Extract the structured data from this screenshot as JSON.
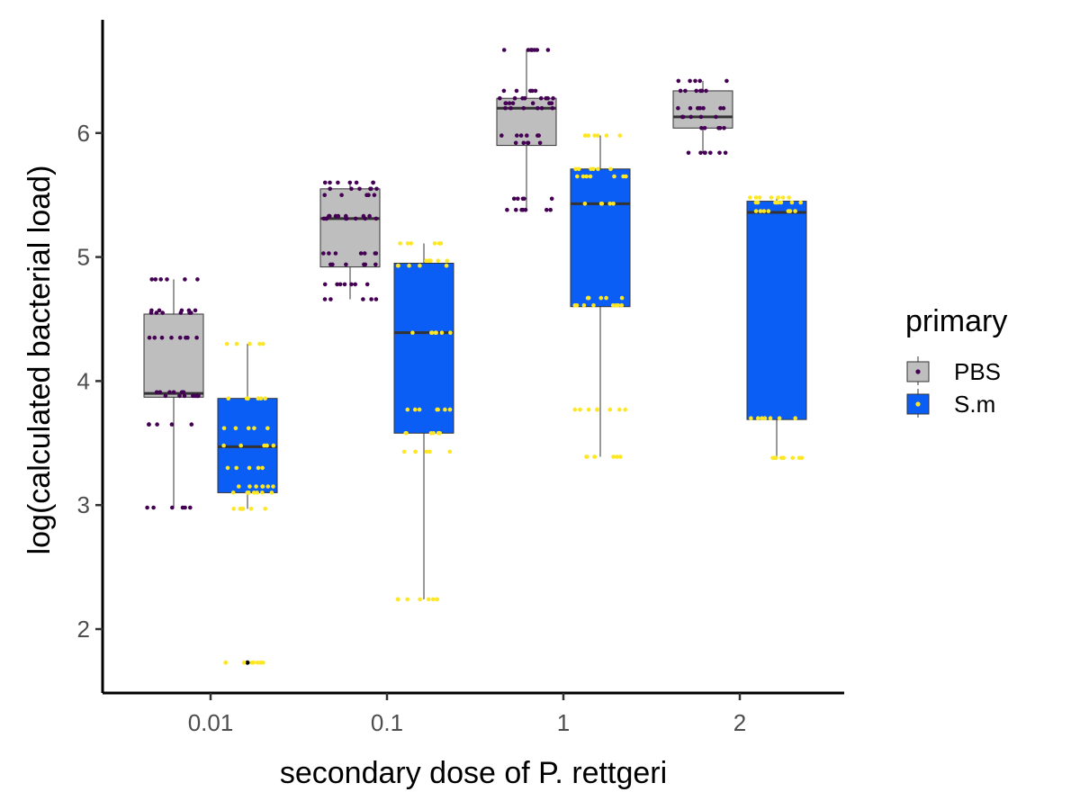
{
  "chart_data": {
    "type": "box",
    "xlabel": "secondary dose of P. rettgeri",
    "ylabel": "log(calculated bacterial load)",
    "categories": [
      "0.01",
      "0.1",
      "1",
      "2"
    ],
    "yticks": [
      2,
      3,
      4,
      5,
      6
    ],
    "ylim": [
      1.5,
      6.9
    ],
    "legend": {
      "title": "primary",
      "position": "right"
    },
    "series": [
      {
        "name": "PBS",
        "box_color": "#bebebe",
        "point_color": "#440154",
        "boxes": [
          {
            "min": 2.98,
            "q1": 3.87,
            "median": 3.9,
            "q3": 4.54,
            "max": 4.82,
            "points": [
              4.82,
              4.57,
              4.55,
              4.35,
              3.91,
              3.88,
              3.65,
              2.98
            ]
          },
          {
            "min": 4.66,
            "q1": 4.92,
            "median": 5.31,
            "q3": 5.55,
            "max": 5.6,
            "points": [
              5.6,
              5.55,
              5.5,
              5.33,
              5.31,
              5.03,
              4.94,
              4.78,
              4.66
            ]
          },
          {
            "min": 5.38,
            "q1": 5.9,
            "median": 6.2,
            "q3": 6.28,
            "max": 6.67,
            "points": [
              6.67,
              6.34,
              6.28,
              6.24,
              6.2,
              5.98,
              5.92,
              5.47,
              5.38
            ]
          },
          {
            "min": 5.84,
            "q1": 6.04,
            "median": 6.13,
            "q3": 6.34,
            "max": 6.42,
            "points": [
              6.42,
              6.34,
              6.2,
              6.13,
              6.04,
              5.84
            ]
          }
        ]
      },
      {
        "name": "S.m",
        "box_color": "#0a5ef5",
        "point_color": "#fde725",
        "boxes": [
          {
            "min": 2.97,
            "q1": 3.1,
            "median": 3.47,
            "q3": 3.86,
            "max": 4.3,
            "outliers": [
              1.73
            ],
            "points": [
              4.3,
              3.86,
              3.62,
              3.48,
              3.3,
              3.15,
              3.1,
              2.97,
              1.73
            ]
          },
          {
            "min": 2.24,
            "q1": 3.58,
            "median": 4.39,
            "q3": 4.95,
            "max": 5.11,
            "points": [
              5.11,
              4.97,
              4.93,
              4.39,
              3.77,
              3.58,
              3.43,
              2.24
            ]
          },
          {
            "min": 3.39,
            "q1": 4.6,
            "median": 5.43,
            "q3": 5.71,
            "max": 5.98,
            "points": [
              5.98,
              5.71,
              5.65,
              5.43,
              4.67,
              4.61,
              3.77,
              3.39
            ]
          },
          {
            "min": 3.38,
            "q1": 3.69,
            "median": 5.36,
            "q3": 5.45,
            "max": 5.48,
            "points": [
              5.48,
              5.44,
              5.37,
              3.7,
              3.38
            ]
          }
        ]
      }
    ]
  }
}
